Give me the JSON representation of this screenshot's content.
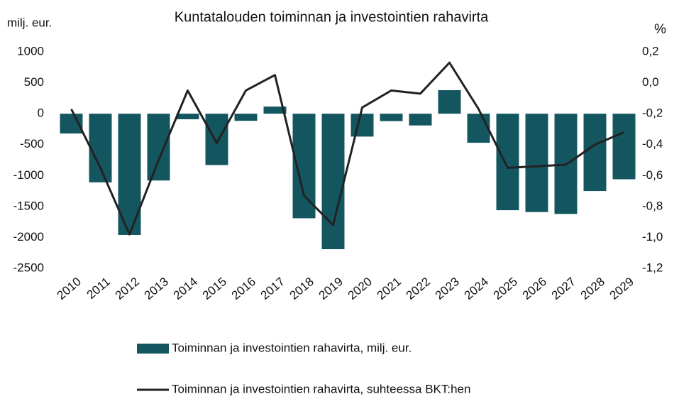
{
  "chart_data": {
    "type": "bar_line",
    "title": "Kuntatalouden toiminnan ja investointien rahavirta",
    "ylabel": "milj. eur.",
    "y2label": "%",
    "categories": [
      "2010",
      "2011",
      "2012",
      "2013",
      "2014",
      "2015",
      "2016",
      "2017",
      "2018",
      "2019",
      "2020",
      "2021",
      "2022",
      "2023",
      "2024",
      "2025",
      "2026",
      "2027",
      "2028",
      "2029"
    ],
    "series": [
      {
        "name": "Toiminnan ja investointien rahavirta, milj. eur.",
        "type": "bar",
        "color": "#145660",
        "values": [
          -320,
          -1110,
          -1960,
          -1080,
          -90,
          -830,
          -115,
          115,
          -1690,
          -2190,
          -370,
          -120,
          -190,
          380,
          -470,
          -1560,
          -1590,
          -1620,
          -1250,
          -1060
        ]
      },
      {
        "name": "Toiminnan ja investointien rahavirta, suhteessa BKT:hen",
        "type": "line",
        "color": "#222222",
        "axis": "y2",
        "values": [
          -0.17,
          -0.55,
          -0.98,
          -0.5,
          -0.05,
          -0.39,
          -0.05,
          0.05,
          -0.73,
          -0.92,
          -0.16,
          -0.05,
          -0.07,
          0.13,
          -0.17,
          -0.55,
          -0.54,
          -0.53,
          -0.4,
          -0.32
        ]
      }
    ],
    "ylim": [
      -2500,
      1000
    ],
    "yticks": [
      -2500,
      -2000,
      -1500,
      -1000,
      -500,
      0,
      500,
      1000
    ],
    "y2lim": [
      -1.2,
      0.2
    ],
    "y2ticks": [
      {
        "value": -1.2,
        "label": "-1,2"
      },
      {
        "value": -1.0,
        "label": "-1,0"
      },
      {
        "value": -0.8,
        "label": "-0,8"
      },
      {
        "value": -0.6,
        "label": "-0,6"
      },
      {
        "value": -0.4,
        "label": "-0,4"
      },
      {
        "value": -0.2,
        "label": "-0,2"
      },
      {
        "value": 0.0,
        "label": "0,0"
      },
      {
        "value": 0.2,
        "label": "0,2"
      }
    ],
    "grid": false
  }
}
